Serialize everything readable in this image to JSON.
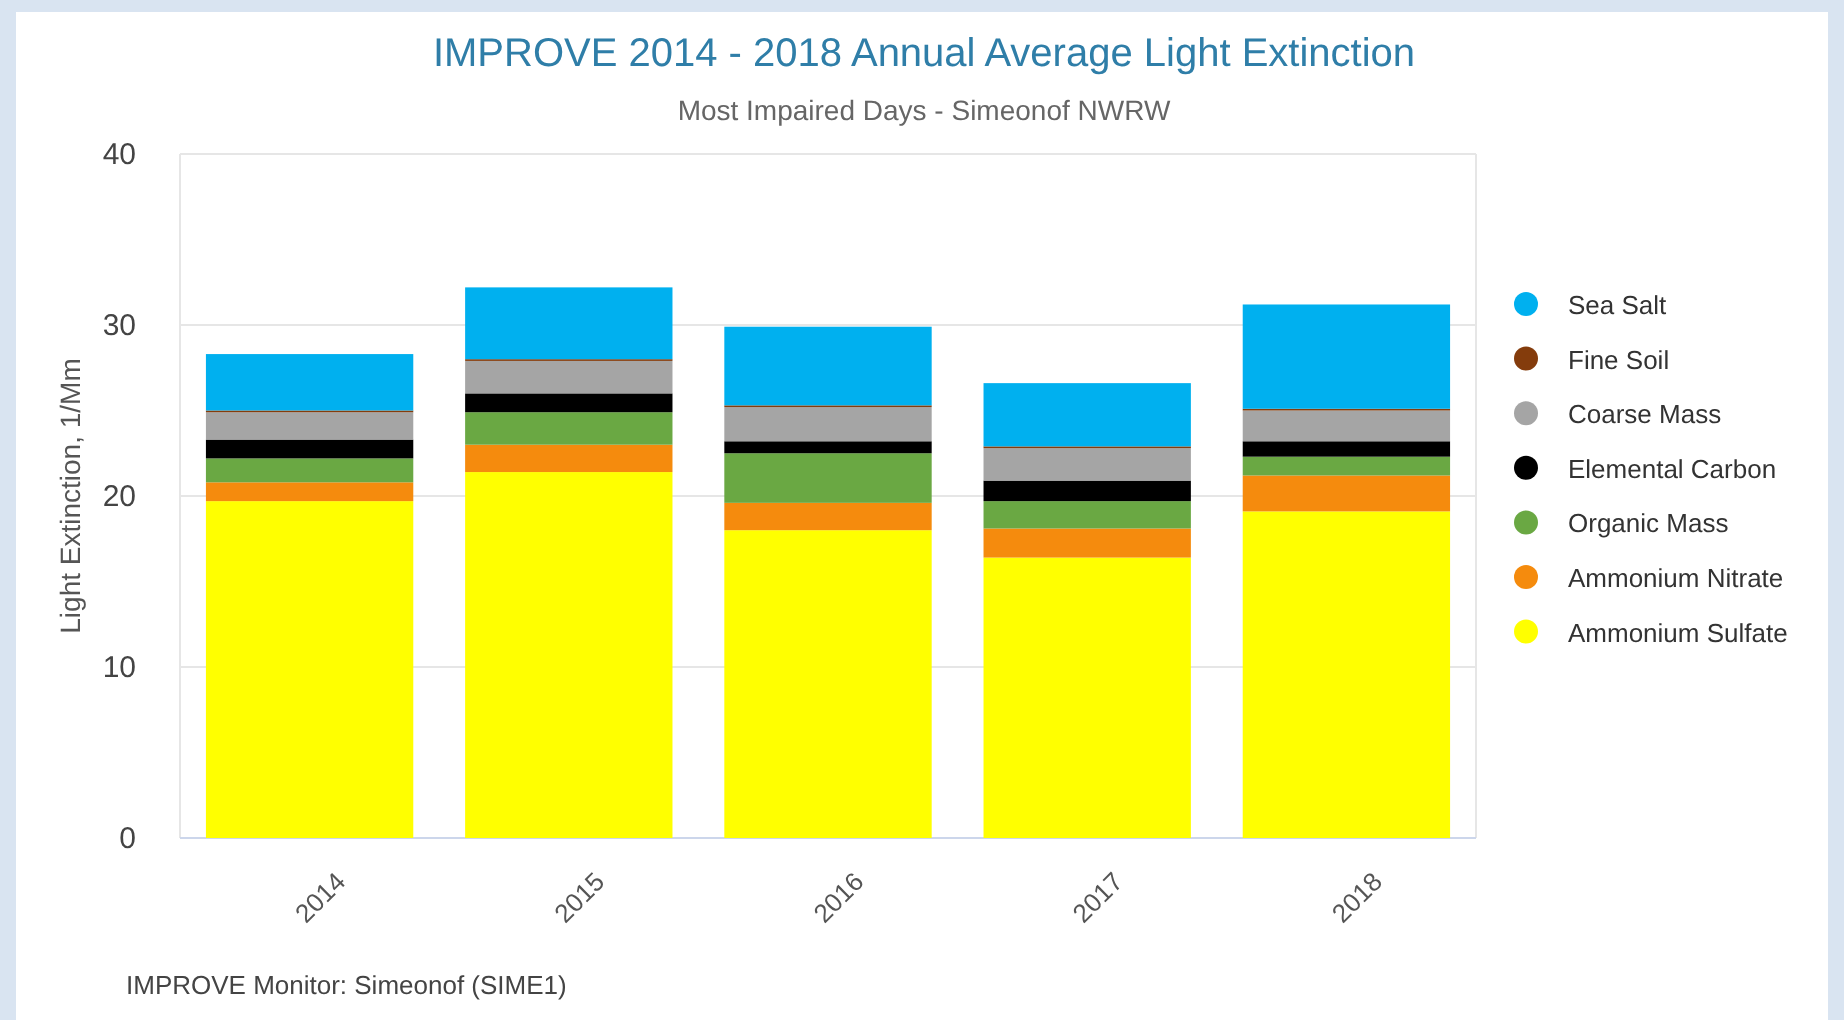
{
  "chart_data": {
    "type": "bar",
    "title": "IMPROVE 2014 - 2018 Annual Average Light Extinction",
    "subtitle": "Most Impaired Days - Simeonof NWRW",
    "ylabel": "Light Extinction, 1/Mm",
    "categories": [
      "2014",
      "2015",
      "2016",
      "2017",
      "2018"
    ],
    "stacked": true,
    "ylim": [
      0,
      40
    ],
    "yticks": [
      0,
      10,
      20,
      30,
      40
    ],
    "grid": "y",
    "legend": "right",
    "series": [
      {
        "name": "Ammonium Sulfate",
        "color": "#ffff00",
        "values": [
          19.7,
          21.4,
          18.0,
          16.4,
          19.1
        ]
      },
      {
        "name": "Ammonium Nitrate",
        "color": "#f58b0d",
        "values": [
          1.1,
          1.6,
          1.6,
          1.7,
          2.1
        ]
      },
      {
        "name": "Organic Mass",
        "color": "#6aa843",
        "values": [
          1.4,
          1.9,
          2.9,
          1.6,
          1.1
        ]
      },
      {
        "name": "Elemental Carbon",
        "color": "#000000",
        "values": [
          1.1,
          1.1,
          0.7,
          1.2,
          0.9
        ]
      },
      {
        "name": "Coarse Mass",
        "color": "#a5a5a5",
        "values": [
          1.6,
          1.9,
          2.0,
          1.9,
          1.8
        ]
      },
      {
        "name": "Fine Soil",
        "color": "#843c0c",
        "values": [
          0.1,
          0.1,
          0.1,
          0.1,
          0.1
        ]
      },
      {
        "name": "Sea Salt",
        "color": "#00b0ef",
        "values": [
          3.3,
          4.2,
          4.6,
          3.7,
          6.1
        ]
      }
    ],
    "annotations": [
      "IMPROVE Monitor: Simeonof (SIME1)"
    ]
  }
}
